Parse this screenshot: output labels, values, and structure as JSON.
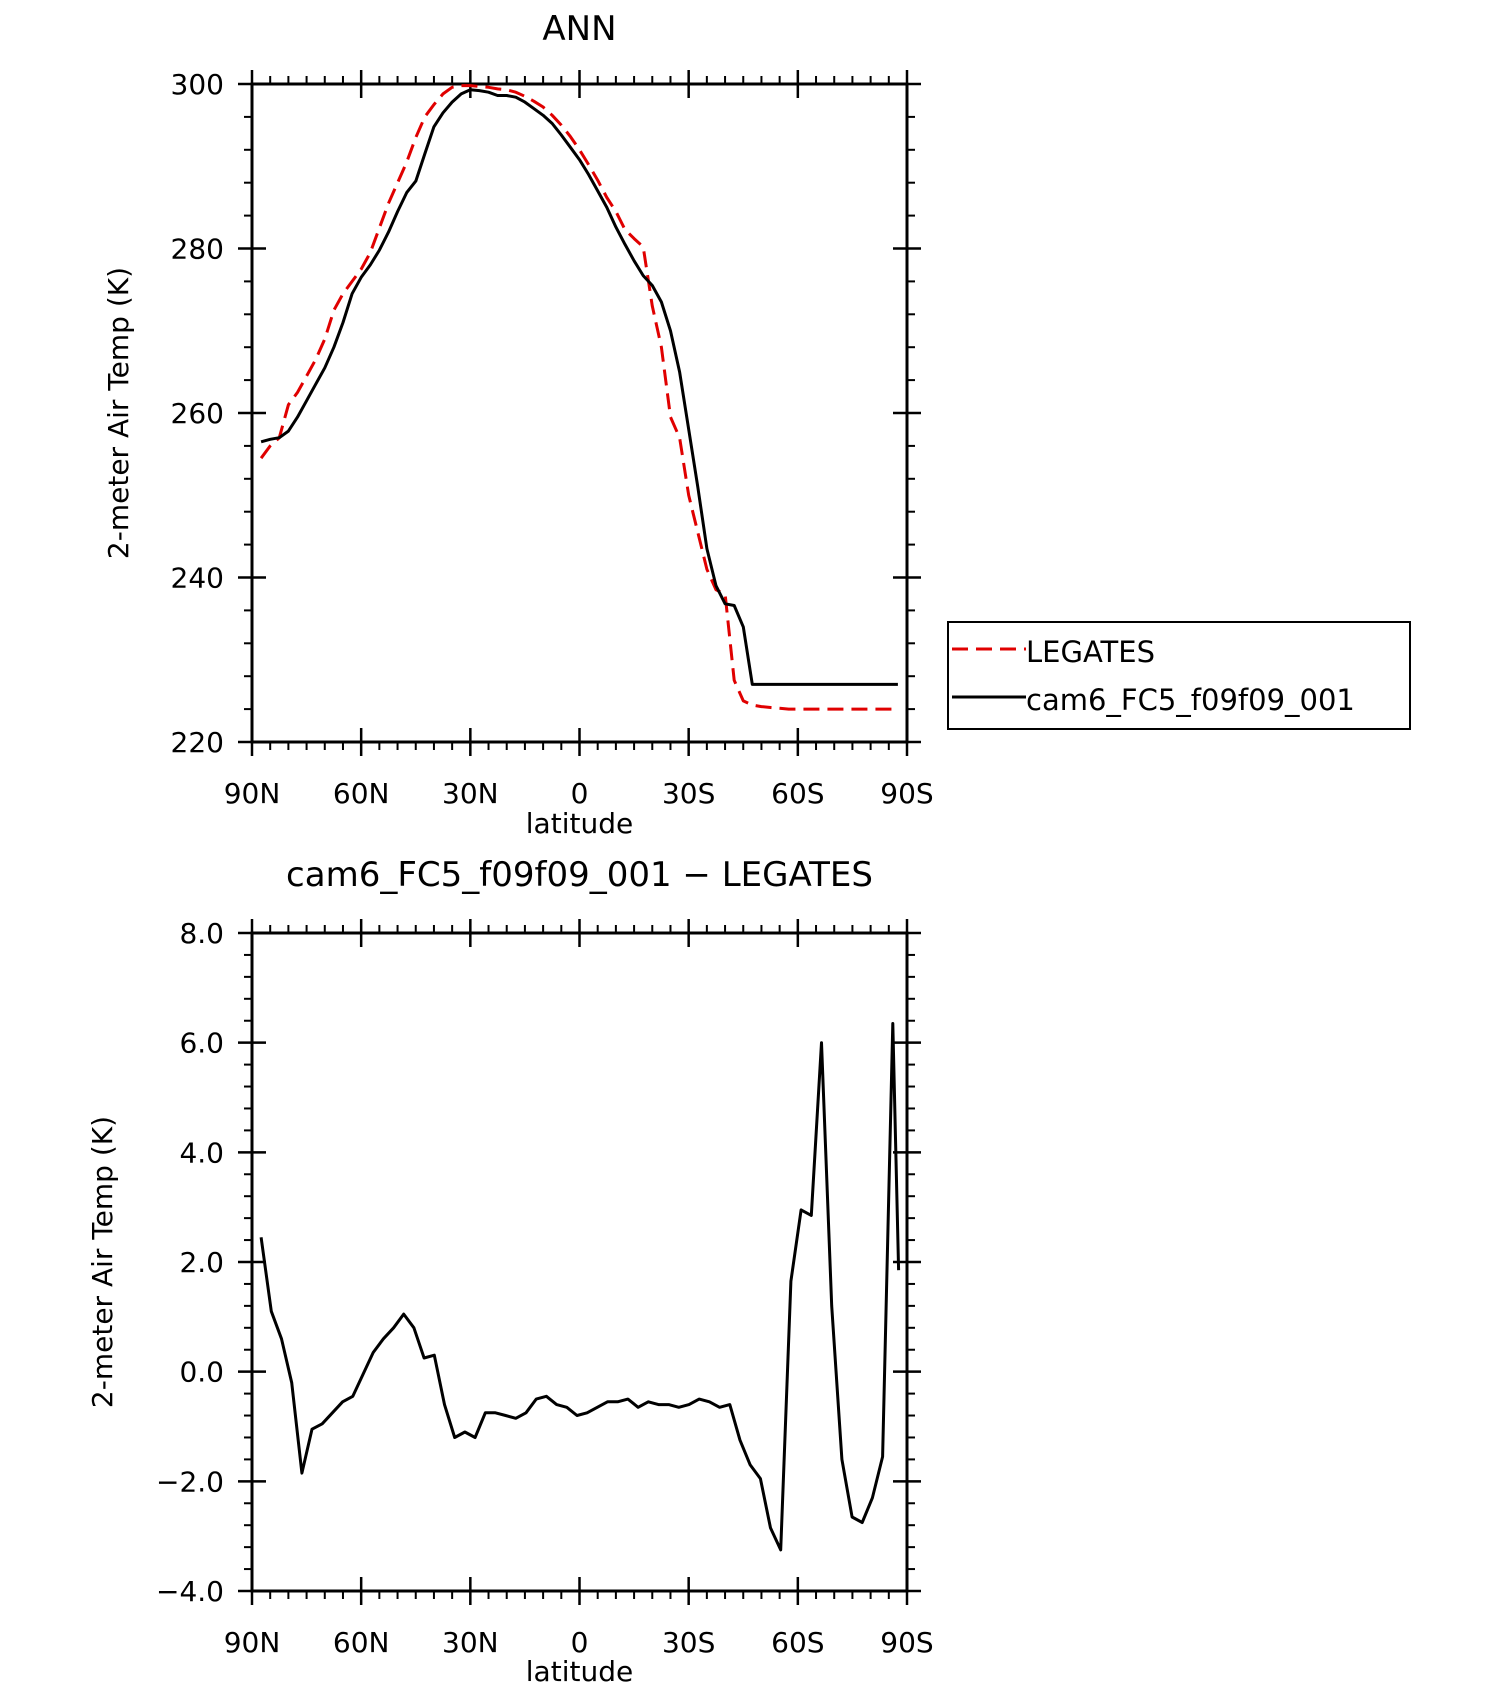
{
  "chart_data": [
    {
      "type": "line",
      "title": "ANN",
      "xlabel": "latitude",
      "ylabel": "2-meter Air Temp (K)",
      "xlim": [
        90,
        -90
      ],
      "ylim": [
        220,
        300
      ],
      "xticks": [
        {
          "value": 90,
          "label": "90N"
        },
        {
          "value": 60,
          "label": "60N"
        },
        {
          "value": 30,
          "label": "30N"
        },
        {
          "value": 0,
          "label": "0"
        },
        {
          "value": -30,
          "label": "30S"
        },
        {
          "value": -60,
          "label": "60S"
        },
        {
          "value": -90,
          "label": "90S"
        }
      ],
      "yticks": [
        {
          "value": 220,
          "label": "220"
        },
        {
          "value": 240,
          "label": "240"
        },
        {
          "value": 260,
          "label": "260"
        },
        {
          "value": 280,
          "label": "280"
        },
        {
          "value": 300,
          "label": "300"
        }
      ],
      "legend": "right",
      "series": [
        {
          "name": "LEGATES",
          "color": "#e00000",
          "dash": true,
          "x": [
            87.5,
            85,
            82.5,
            80,
            77.5,
            75,
            72.5,
            70,
            67.5,
            65,
            62.5,
            60,
            57.5,
            55,
            52.5,
            50,
            47.5,
            45,
            42.5,
            40,
            37.5,
            35,
            32.5,
            30,
            27.5,
            25,
            22.5,
            20,
            17.5,
            15,
            12.5,
            10,
            7.5,
            5,
            2.5,
            0,
            -2.5,
            -5,
            -7.5,
            -10,
            -12.5,
            -15,
            -17.5,
            -20,
            -22.5,
            -25,
            -27.5,
            -30,
            -32.5,
            -35,
            -37.5,
            -40,
            -42.5,
            -45,
            -47.5,
            -50,
            -52.5,
            -55,
            -57.5,
            -60,
            -62.5,
            -65,
            -67.5,
            -70,
            -72.5,
            -75,
            -77.5,
            -80,
            -82.5,
            -85,
            -87.5
          ],
          "y": [
            254.5,
            256.0,
            257.0,
            261.0,
            262.5,
            264.5,
            266.5,
            269.0,
            272.5,
            274.5,
            276.0,
            277.5,
            279.5,
            282.5,
            285.5,
            288.0,
            290.5,
            293.5,
            296.0,
            297.5,
            298.8,
            299.6,
            299.8,
            299.8,
            299.7,
            299.6,
            299.4,
            299.3,
            299.0,
            298.5,
            297.9,
            297.2,
            296.2,
            295.0,
            293.6,
            292.0,
            290.2,
            288.3,
            286.2,
            284.5,
            282.3,
            281.2,
            280.2,
            273.0,
            268.0,
            259.5,
            257.0,
            250.0,
            245.5,
            241.0,
            238.5,
            238.0,
            227.5,
            225.0,
            224.5,
            224.3,
            224.2,
            224.1,
            224.0,
            224.0,
            224.0,
            224.0,
            224.0,
            224.0,
            224.0,
            224.0,
            224.0,
            224.0,
            224.0,
            224.0,
            224.0
          ]
        },
        {
          "name": "cam6_FC5_f09f09_001",
          "color": "#000000",
          "dash": false,
          "x": [
            87.5,
            85,
            82.5,
            80,
            77.5,
            75,
            72.5,
            70,
            67.5,
            65,
            62.5,
            60,
            57.5,
            55,
            52.5,
            50,
            47.5,
            45,
            42.5,
            40,
            37.5,
            35,
            32.5,
            30,
            27.5,
            25,
            22.5,
            20,
            17.5,
            15,
            12.5,
            10,
            7.5,
            5,
            2.5,
            0,
            -2.5,
            -5,
            -7.5,
            -10,
            -12.5,
            -15,
            -17.5,
            -20,
            -22.5,
            -25,
            -27.5,
            -30,
            -32.5,
            -35,
            -37.5,
            -40,
            -42.5,
            -45,
            -47.5,
            -50,
            -52.5,
            -55,
            -57.5,
            -60,
            -62.5,
            -65,
            -67.5,
            -70,
            -72.5,
            -75,
            -77.5,
            -80,
            -82.5,
            -85,
            -87.5
          ],
          "y": [
            256.5,
            256.8,
            257.0,
            257.8,
            259.5,
            261.5,
            263.5,
            265.5,
            268.0,
            271.0,
            274.5,
            276.5,
            278.0,
            279.8,
            282.0,
            284.5,
            286.8,
            288.2,
            291.5,
            294.8,
            296.5,
            297.8,
            298.8,
            299.3,
            299.2,
            299.0,
            298.6,
            298.6,
            298.4,
            297.8,
            297.0,
            296.2,
            295.2,
            293.8,
            292.3,
            290.8,
            289.0,
            287.0,
            285.0,
            282.6,
            280.5,
            278.5,
            276.7,
            275.5,
            273.5,
            270.0,
            265.0,
            258.0,
            251.0,
            243.5,
            239.0,
            236.8,
            236.6,
            234.0,
            227.0,
            227.0,
            227.0,
            227.0,
            227.0,
            227.0,
            227.0,
            227.0,
            227.0,
            227.0,
            227.0,
            227.0,
            227.0,
            227.0,
            227.0,
            227.0,
            227.0
          ]
        }
      ]
    },
    {
      "type": "line",
      "title": "cam6_FC5_f09f09_001 − LEGATES",
      "xlabel": "latitude",
      "ylabel": "2-meter Air Temp (K)",
      "xlim": [
        90,
        -90
      ],
      "ylim": [
        -4.0,
        8.0
      ],
      "xticks": [
        {
          "value": 90,
          "label": "90N"
        },
        {
          "value": 60,
          "label": "60N"
        },
        {
          "value": 30,
          "label": "30N"
        },
        {
          "value": 0,
          "label": "0"
        },
        {
          "value": -30,
          "label": "30S"
        },
        {
          "value": -60,
          "label": "60S"
        },
        {
          "value": -90,
          "label": "90S"
        }
      ],
      "yticks": [
        {
          "value": -4.0,
          "label": "−4.0"
        },
        {
          "value": -2.0,
          "label": "−2.0"
        },
        {
          "value": 0.0,
          "label": "0.0"
        },
        {
          "value": 2.0,
          "label": "2.0"
        },
        {
          "value": 4.0,
          "label": "4.0"
        },
        {
          "value": 6.0,
          "label": "6.0"
        },
        {
          "value": 8.0,
          "label": "8.0"
        }
      ],
      "series": [
        {
          "color": "#000000",
          "dash": false,
          "x": [
            87.5,
            84.7,
            81.9,
            79.1,
            76.3,
            73.5,
            70.7,
            67.9,
            65.1,
            62.3,
            59.5,
            56.7,
            53.9,
            51.1,
            48.3,
            45.5,
            42.7,
            39.9,
            37.1,
            34.3,
            31.5,
            28.7,
            25.9,
            23.1,
            20.3,
            17.5,
            14.7,
            11.9,
            9.1,
            6.3,
            3.5,
            0.7,
            -2.1,
            -4.9,
            -7.7,
            -10.5,
            -13.3,
            -16.1,
            -18.9,
            -21.7,
            -24.5,
            -27.3,
            -30.1,
            -32.9,
            -35.7,
            -38.5,
            -41.3,
            -44.1,
            -46.9,
            -49.7,
            -52.5,
            -55.3,
            -58.1,
            -60.9,
            -63.7,
            -66.5,
            -69.3,
            -72.1,
            -74.9,
            -77.7,
            -80.5,
            -83.3,
            -86.1,
            -87.7
          ],
          "y": [
            2.45,
            1.1,
            0.6,
            -0.2,
            -1.85,
            -1.05,
            -0.95,
            -0.75,
            -0.55,
            -0.45,
            -0.05,
            0.35,
            0.6,
            0.8,
            1.05,
            0.8,
            0.25,
            0.3,
            -0.6,
            -1.2,
            -1.1,
            -1.2,
            -0.75,
            -0.75,
            -0.8,
            -0.85,
            -0.75,
            -0.5,
            -0.45,
            -0.6,
            -0.65,
            -0.8,
            -0.75,
            -0.65,
            -0.55,
            -0.55,
            -0.5,
            -0.65,
            -0.55,
            -0.6,
            -0.6,
            -0.65,
            -0.6,
            -0.5,
            -0.55,
            -0.65,
            -0.6,
            -1.25,
            -1.7,
            -1.95,
            -2.85,
            -3.25,
            1.65,
            2.95,
            2.85,
            6.0,
            1.2,
            -1.6,
            -2.65,
            -2.75,
            -2.3,
            -1.55,
            6.35,
            1.85
          ]
        }
      ]
    }
  ]
}
